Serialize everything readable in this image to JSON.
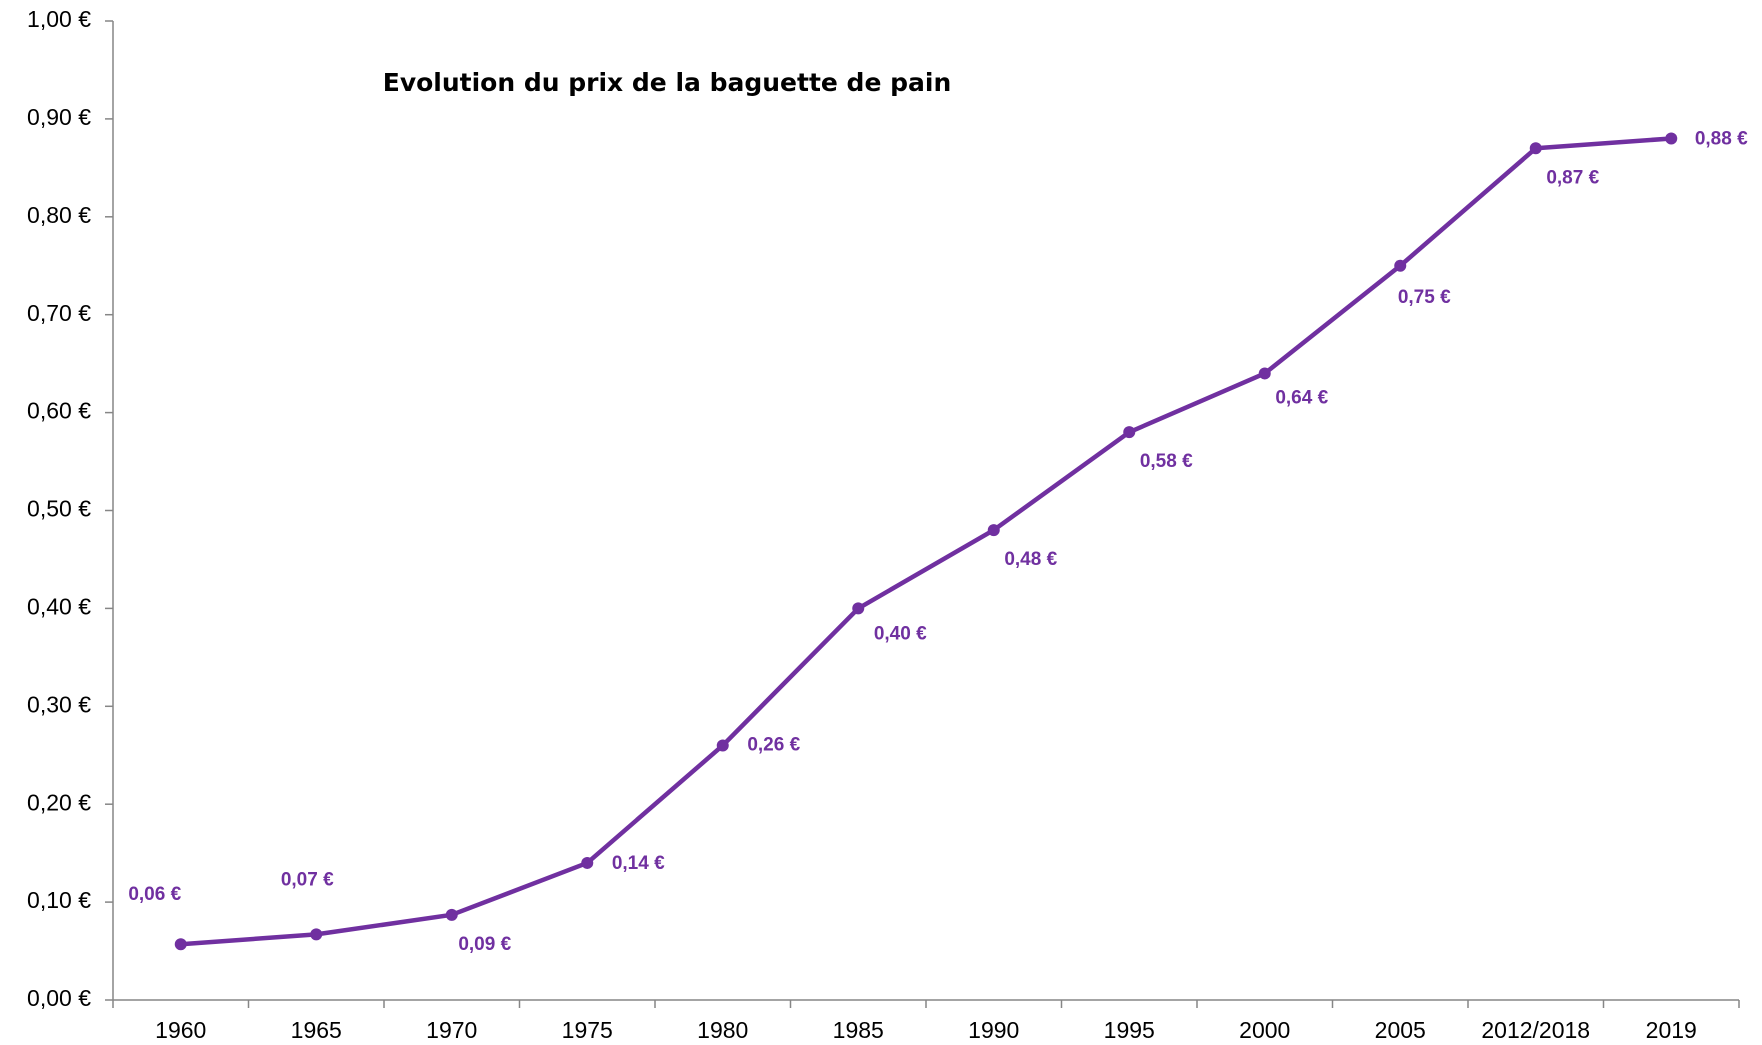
{
  "chart_data": {
    "type": "line",
    "title": "Evolution du prix de la baguette de pain",
    "categories": [
      "1960",
      "1965",
      "1970",
      "1975",
      "1980",
      "1985",
      "1990",
      "1995",
      "2000",
      "2005",
      "2012/2018",
      "2019"
    ],
    "series": [
      {
        "name": "Prix",
        "color": "#7030a0",
        "values": [
          0.057,
          0.067,
          0.087,
          0.14,
          0.26,
          0.4,
          0.48,
          0.58,
          0.64,
          0.75,
          0.87,
          0.88
        ],
        "value_labels": [
          "0,06 €",
          "0,07 €",
          "0,09 €",
          "0,14 €",
          "0,26 €",
          "0,40 €",
          "0,48 €",
          "0,58 €",
          "0,64 €",
          "0,75 €",
          "0,87 €",
          "0,88 €"
        ]
      }
    ],
    "ylim": [
      0,
      1
    ],
    "yticks": [
      {
        "value": 0,
        "label": "0,00 €"
      },
      {
        "value": 0.1,
        "label": "0,10 €"
      },
      {
        "value": 0.2,
        "label": "0,20 €"
      },
      {
        "value": 0.3,
        "label": "0,30 €"
      },
      {
        "value": 0.4,
        "label": "0,40 €"
      },
      {
        "value": 0.5,
        "label": "0,50 €"
      },
      {
        "value": 0.6,
        "label": "0,60 €"
      },
      {
        "value": 0.7,
        "label": "0,70 €"
      },
      {
        "value": 0.8,
        "label": "0,80 €"
      },
      {
        "value": 0.9,
        "label": "0,90 €"
      },
      {
        "value": 1,
        "label": "1,00 €"
      }
    ],
    "grid": false
  }
}
